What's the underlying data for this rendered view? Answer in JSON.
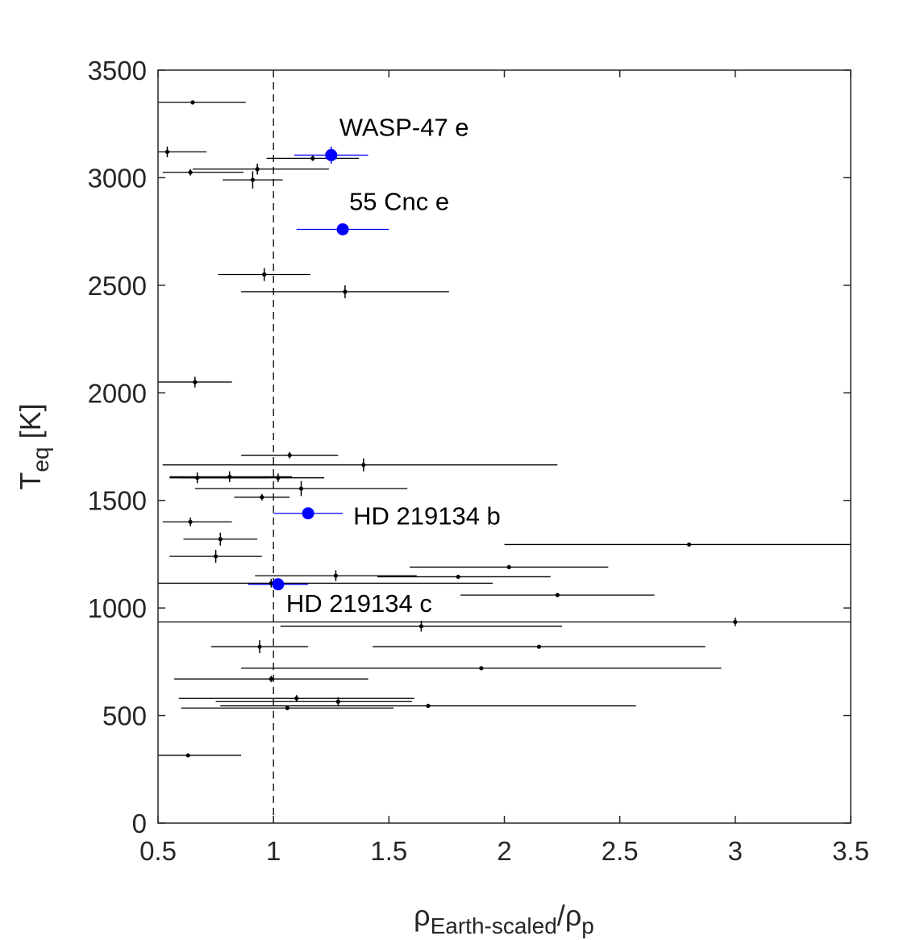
{
  "chart_data": {
    "type": "scatter",
    "xlabel": {
      "base_pre": "ρ",
      "sub_pre": "Earth-scaled",
      "slash": "/",
      "base_post": "ρ",
      "sub_post": "p"
    },
    "ylabel": {
      "base": "T",
      "sub": "eq",
      "unit": " [K]"
    },
    "xlim": [
      0.5,
      3.5
    ],
    "ylim": [
      0,
      3500
    ],
    "x_ticks": [
      "0.5",
      "1",
      "1.5",
      "2",
      "2.5",
      "3",
      "3.5"
    ],
    "y_ticks": [
      "0",
      "500",
      "1000",
      "1500",
      "2000",
      "2500",
      "3000",
      "3500"
    ],
    "grid": false,
    "reference_line": {
      "x": 1,
      "style": "dashed"
    },
    "colors": {
      "sample": "#000000",
      "highlight": "#0000ff",
      "axis": "#262626"
    },
    "series": [
      {
        "points": [
          {
            "x": 0.65,
            "y": 3350,
            "xerr_lo": 0.15,
            "xerr_hi": 0.23,
            "yerr": 5
          },
          {
            "x": 0.54,
            "y": 3120,
            "xerr_lo": 0.04,
            "xerr_hi": 0.17,
            "yerr": 25
          },
          {
            "x": 1.17,
            "y": 3090,
            "xerr_lo": 0.2,
            "xerr_hi": 0.2,
            "yerr": 12
          },
          {
            "x": 0.93,
            "y": 3040,
            "xerr_lo": 0.28,
            "xerr_hi": 0.31,
            "yerr": 25
          },
          {
            "x": 0.64,
            "y": 3025,
            "xerr_lo": 0.12,
            "xerr_hi": 0.23,
            "yerr": 15
          },
          {
            "x": 0.91,
            "y": 2990,
            "xerr_lo": 0.13,
            "xerr_hi": 0.13,
            "yerr": 40
          },
          {
            "x": 0.96,
            "y": 2550,
            "xerr_lo": 0.2,
            "xerr_hi": 0.2,
            "yerr": 30
          },
          {
            "x": 1.31,
            "y": 2470,
            "xerr_lo": 0.45,
            "xerr_hi": 0.45,
            "yerr": 30
          },
          {
            "x": 0.66,
            "y": 2050,
            "xerr_lo": 0.16,
            "xerr_hi": 0.16,
            "yerr": 25
          },
          {
            "x": 1.07,
            "y": 1710,
            "xerr_lo": 0.21,
            "xerr_hi": 0.21,
            "yerr": 15
          },
          {
            "x": 1.39,
            "y": 1665,
            "xerr_lo": 0.87,
            "xerr_hi": 0.84,
            "yerr": 30
          },
          {
            "x": 0.67,
            "y": 1605,
            "xerr_lo": 0.12,
            "xerr_hi": 0.3,
            "yerr": 25
          },
          {
            "x": 0.81,
            "y": 1610,
            "xerr_lo": 0.26,
            "xerr_hi": 0.27,
            "yerr": 25
          },
          {
            "x": 1.02,
            "y": 1605,
            "xerr_lo": 0.42,
            "xerr_hi": 0.2,
            "yerr": 20
          },
          {
            "x": 1.12,
            "y": 1555,
            "xerr_lo": 0.46,
            "xerr_hi": 0.46,
            "yerr": 35
          },
          {
            "x": 0.95,
            "y": 1515,
            "xerr_lo": 0.12,
            "xerr_hi": 0.12,
            "yerr": 15
          },
          {
            "x": 0.64,
            "y": 1400,
            "xerr_lo": 0.12,
            "xerr_hi": 0.18,
            "yerr": 20
          },
          {
            "x": 0.77,
            "y": 1320,
            "xerr_lo": 0.16,
            "xerr_hi": 0.16,
            "yerr": 30
          },
          {
            "x": 0.75,
            "y": 1240,
            "xerr_lo": 0.2,
            "xerr_hi": 0.2,
            "yerr": 30
          },
          {
            "x": 2.8,
            "y": 1295,
            "xerr_lo": 0.8,
            "xerr_hi": 0.7,
            "yerr": 5
          },
          {
            "x": 2.02,
            "y": 1190,
            "xerr_lo": 0.43,
            "xerr_hi": 0.43,
            "yerr": 10
          },
          {
            "x": 1.27,
            "y": 1150,
            "xerr_lo": 0.35,
            "xerr_hi": 0.35,
            "yerr": 25
          },
          {
            "x": 1.8,
            "y": 1145,
            "xerr_lo": 0.35,
            "xerr_hi": 0.4,
            "yerr": 5
          },
          {
            "x": 0.99,
            "y": 1115,
            "xerr_lo": 0.49,
            "xerr_hi": 0.96,
            "yerr": 20
          },
          {
            "x": 2.23,
            "y": 1060,
            "xerr_lo": 0.42,
            "xerr_hi": 0.42,
            "yerr": 5
          },
          {
            "x": 3.0,
            "y": 935,
            "xerr_lo": 2.5,
            "xerr_hi": 0.5,
            "yerr": 20
          },
          {
            "x": 1.64,
            "y": 915,
            "xerr_lo": 0.61,
            "xerr_hi": 0.61,
            "yerr": 25
          },
          {
            "x": 0.94,
            "y": 820,
            "xerr_lo": 0.21,
            "xerr_hi": 0.21,
            "yerr": 30
          },
          {
            "x": 2.15,
            "y": 820,
            "xerr_lo": 0.72,
            "xerr_hi": 0.72,
            "yerr": 5
          },
          {
            "x": 1.9,
            "y": 720,
            "xerr_lo": 1.04,
            "xerr_hi": 1.04,
            "yerr": 5
          },
          {
            "x": 0.99,
            "y": 670,
            "xerr_lo": 0.42,
            "xerr_hi": 0.42,
            "yerr": 15
          },
          {
            "x": 1.1,
            "y": 580,
            "xerr_lo": 0.51,
            "xerr_hi": 0.51,
            "yerr": 15
          },
          {
            "x": 1.28,
            "y": 565,
            "xerr_lo": 0.53,
            "xerr_hi": 0.32,
            "yerr": 20
          },
          {
            "x": 1.67,
            "y": 545,
            "xerr_lo": 0.9,
            "xerr_hi": 0.9,
            "yerr": 5
          },
          {
            "x": 1.06,
            "y": 535,
            "xerr_lo": 0.46,
            "xerr_hi": 0.46,
            "yerr": 10
          },
          {
            "x": 0.63,
            "y": 315,
            "xerr_lo": 0.13,
            "xerr_hi": 0.23,
            "yerr": 5
          }
        ]
      },
      {
        "points": [
          {
            "x": 1.25,
            "y": 3105,
            "xerr_lo": 0.16,
            "xerr_hi": 0.16,
            "yerr": 40,
            "label": "WASP-47 e"
          },
          {
            "x": 1.3,
            "y": 2760,
            "xerr_lo": 0.2,
            "xerr_hi": 0.2,
            "yerr": 10,
            "label": "55 Cnc e"
          },
          {
            "x": 1.15,
            "y": 1440,
            "xerr_lo": 0.15,
            "xerr_hi": 0.15,
            "yerr": 10,
            "label": "HD 219134 b"
          },
          {
            "x": 1.02,
            "y": 1110,
            "xerr_lo": 0.13,
            "xerr_hi": 0.13,
            "yerr": 10,
            "label": "HD 219134 c"
          }
        ]
      }
    ]
  }
}
